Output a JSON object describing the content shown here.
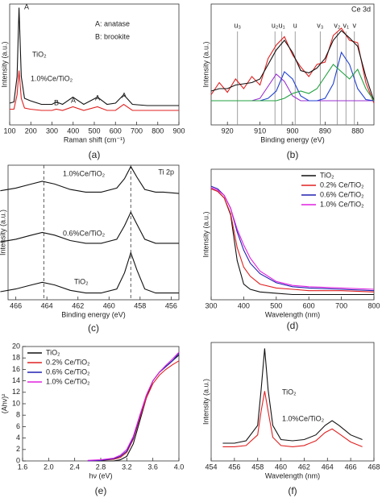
{
  "chart_data": [
    {
      "type": "line",
      "panel_label": "(a)",
      "xlabel": "Raman shift (cm⁻¹)",
      "ylabel": "Intensity (a.u.)",
      "xlim": [
        100,
        900
      ],
      "xticks": [
        100,
        200,
        300,
        400,
        500,
        600,
        700,
        800,
        900
      ],
      "ylim": [
        0,
        100
      ],
      "annotations": [
        "A",
        "A: anatase",
        "B: brookite",
        "TiO₂",
        "1.0%Ce/TiO₂",
        "B",
        "A",
        "A",
        "A"
      ],
      "x": [
        100,
        120,
        135,
        144,
        155,
        170,
        197,
        250,
        300,
        320,
        350,
        399,
        450,
        515,
        560,
        600,
        639,
        680,
        750,
        800,
        900
      ],
      "series": [
        {
          "color": "#111111",
          "values": [
            18,
            19,
            40,
            97,
            40,
            22,
            20,
            17,
            17,
            19,
            17,
            23,
            17,
            23,
            17,
            18,
            25,
            17,
            16,
            16,
            16
          ]
        },
        {
          "color": "#e02020",
          "values": [
            13,
            13,
            25,
            45,
            22,
            14,
            13,
            12,
            12,
            13,
            12,
            15,
            12,
            15,
            12,
            12,
            17,
            12,
            12,
            12,
            12
          ]
        }
      ]
    },
    {
      "type": "line",
      "panel_label": "(b)",
      "xlabel": "Binding energy (eV)",
      "ylabel": "Intensity (a.u.)",
      "xlim": [
        925,
        875
      ],
      "xticks": [
        920,
        910,
        900,
        890,
        880
      ],
      "ylim": [
        0,
        100
      ],
      "annotations": [
        "Ce 3d"
      ],
      "vlines": [
        {
          "label": "u₃",
          "value": 916.9
        },
        {
          "label": "u₂",
          "value": 905.4
        },
        {
          "label": "u₁",
          "value": 903.3
        },
        {
          "label": "u",
          "value": 899.2
        },
        {
          "label": "v₃",
          "value": 891.5
        },
        {
          "label": "v₂",
          "value": 886.3
        },
        {
          "label": "v₁",
          "value": 883.6
        },
        {
          "label": "v",
          "value": 881
        }
      ],
      "x": [
        925,
        922.5,
        920,
        917.5,
        915,
        912.5,
        910,
        907.5,
        905,
        902.5,
        900,
        897.5,
        895,
        892.5,
        890,
        887.5,
        885,
        882.5,
        880,
        877.5,
        875
      ],
      "series": [
        {
          "color": "#e02020",
          "values": [
            25,
            35,
            27,
            38,
            30,
            40,
            33,
            55,
            66,
            73,
            58,
            48,
            40,
            50,
            52,
            74,
            80,
            70,
            68,
            35,
            18
          ]
        },
        {
          "color": "#111111",
          "values": [
            28,
            30,
            30,
            33,
            34,
            35,
            38,
            50,
            62,
            70,
            60,
            45,
            43,
            47,
            55,
            70,
            78,
            72,
            65,
            40,
            20
          ]
        },
        {
          "color": "#9b30d0",
          "values": [
            20,
            20,
            20,
            20,
            20,
            20,
            22,
            32,
            42,
            36,
            24,
            20,
            20,
            20,
            20,
            20,
            20,
            20,
            20,
            20,
            20
          ]
        },
        {
          "color": "#2040d0",
          "values": [
            20,
            20,
            20,
            20,
            20,
            20,
            20,
            22,
            28,
            44,
            38,
            24,
            20,
            20,
            22,
            34,
            60,
            50,
            30,
            21,
            20
          ]
        },
        {
          "color": "#20a040",
          "values": [
            20,
            20,
            20,
            20,
            20,
            20,
            20,
            20,
            20,
            22,
            26,
            28,
            26,
            30,
            40,
            50,
            44,
            38,
            46,
            30,
            20
          ]
        }
      ]
    },
    {
      "type": "line",
      "panel_label": "(c)",
      "xlabel": "Binding energy (eV)",
      "ylabel": "Intensity (a.u.)",
      "xlim": [
        466.5,
        455.5
      ],
      "xticks": [
        466,
        464,
        462,
        460,
        458,
        456
      ],
      "ylim": [
        0,
        100
      ],
      "annotations": [
        "Ti 2p",
        "1.0%Ce/TiO₂",
        "0.6%Ce/TiO₂",
        "TiO₂"
      ],
      "vlines": [
        464.2,
        458.6
      ],
      "vline_dash": true,
      "x": [
        467,
        466,
        465,
        464.3,
        463.5,
        462.5,
        461.5,
        460.5,
        459.5,
        459,
        458.6,
        458.2,
        457.7,
        457,
        456.5,
        455.5
      ],
      "series": [
        {
          "color": "#111111",
          "values": [
            81,
            83,
            86,
            88,
            86,
            82,
            80,
            80,
            83,
            90,
            99,
            91,
            82,
            80,
            80,
            79
          ]
        },
        {
          "color": "#111111",
          "values": [
            43,
            45,
            48,
            50,
            48,
            44,
            42,
            42,
            45,
            55,
            65,
            56,
            45,
            42,
            42,
            42
          ]
        },
        {
          "color": "#111111",
          "values": [
            6,
            8,
            11,
            13,
            11,
            7,
            5,
            5,
            8,
            20,
            35,
            22,
            8,
            5,
            5,
            5
          ]
        }
      ]
    },
    {
      "type": "line",
      "panel_label": "(d)",
      "xlabel": "Wavelength (nm)",
      "ylabel": "Intensity (a.u.)",
      "xlim": [
        300,
        800
      ],
      "xticks": [
        300,
        400,
        500,
        600,
        700,
        800
      ],
      "ylim": [
        0,
        100
      ],
      "legend": "upper right",
      "x": [
        300,
        320,
        340,
        360,
        380,
        400,
        420,
        450,
        500,
        550,
        600,
        700,
        800
      ],
      "series": [
        {
          "name": "TiO₂",
          "color": "#111111",
          "values": [
            85,
            83,
            78,
            65,
            30,
            12,
            8,
            6,
            5,
            4,
            4,
            4,
            4
          ]
        },
        {
          "name": "0.2% Ce/TiO₂",
          "color": "#e02020",
          "values": [
            85,
            83,
            78,
            66,
            40,
            25,
            18,
            12,
            9,
            8,
            7,
            7,
            6
          ]
        },
        {
          "name": "0.6% Ce/TiO₂",
          "color": "#2020b0",
          "values": [
            87,
            85,
            80,
            70,
            52,
            38,
            28,
            20,
            13,
            10,
            9,
            8,
            7
          ]
        },
        {
          "name": "1.0% Ce/TiO₂",
          "color": "#e020e0",
          "values": [
            86,
            84,
            80,
            70,
            54,
            42,
            32,
            22,
            14,
            11,
            10,
            9,
            8
          ]
        }
      ]
    },
    {
      "type": "line",
      "panel_label": "(e)",
      "xlabel": "hν (eV)",
      "ylabel": "(Ahν)²",
      "xlim": [
        1.6,
        4.0
      ],
      "xticks": [
        1.6,
        {
          "value": 2,
          "label": "2.0"
        },
        2.4,
        2.8,
        3.2,
        3.6,
        {
          "value": 4,
          "label": "4.0"
        }
      ],
      "ylim": [
        0,
        20
      ],
      "yticks": [
        0,
        2,
        4,
        6,
        8,
        10,
        12,
        14,
        16,
        18,
        20
      ],
      "legend": "upper left",
      "x": [
        2.6,
        2.8,
        3.0,
        3.1,
        3.2,
        3.3,
        3.4,
        3.5,
        3.6,
        3.7,
        3.8,
        3.9,
        4.0
      ],
      "series": [
        {
          "name": "TiO₂",
          "color": "#111111",
          "values": [
            0,
            0,
            0,
            0.2,
            0.8,
            3,
            7,
            11,
            14,
            15.5,
            16.5,
            17.5,
            18.5
          ]
        },
        {
          "name": "0.2% Ce/TiO₂",
          "color": "#e02020",
          "values": [
            0,
            0.1,
            0.3,
            0.6,
            1.5,
            3.8,
            7.5,
            11,
            13.5,
            15,
            16,
            16.8,
            17.5
          ]
        },
        {
          "name": "0.6% Ce/TiO₂",
          "color": "#2020b0",
          "values": [
            0,
            0.1,
            0.4,
            0.8,
            1.7,
            4,
            7.8,
            11.5,
            14,
            15.5,
            16.5,
            17.5,
            18.8
          ]
        },
        {
          "name": "1.0% Ce/TiO₂",
          "color": "#e020e0",
          "values": [
            0.1,
            0.2,
            0.5,
            1,
            2,
            4.3,
            8,
            11.5,
            14,
            15.5,
            16.7,
            17.8,
            19
          ]
        }
      ]
    },
    {
      "type": "line",
      "panel_label": "(f)",
      "xlabel": "Wavelength (nm)",
      "ylabel": "Intensity (a.u.)",
      "xlim": [
        454,
        468
      ],
      "xticks": [
        454,
        456,
        458,
        460,
        462,
        464,
        466,
        468
      ],
      "ylim": [
        0,
        100
      ],
      "annotations": [
        "TiO₂",
        "1.0%Ce/TiO₂"
      ],
      "x": [
        455,
        456,
        457,
        458,
        458.3,
        458.6,
        458.9,
        459.3,
        460,
        461,
        462,
        463,
        463.8,
        464.4,
        465,
        466,
        467
      ],
      "series": [
        {
          "color": "#111111",
          "values": [
            15,
            15,
            17,
            30,
            60,
            95,
            60,
            30,
            18,
            17,
            18,
            22,
            30,
            34,
            30,
            22,
            18
          ]
        },
        {
          "color": "#e02020",
          "values": [
            12,
            12,
            13,
            22,
            42,
            59,
            42,
            20,
            13,
            12,
            13,
            17,
            24,
            27,
            23,
            16,
            12
          ]
        }
      ]
    }
  ]
}
